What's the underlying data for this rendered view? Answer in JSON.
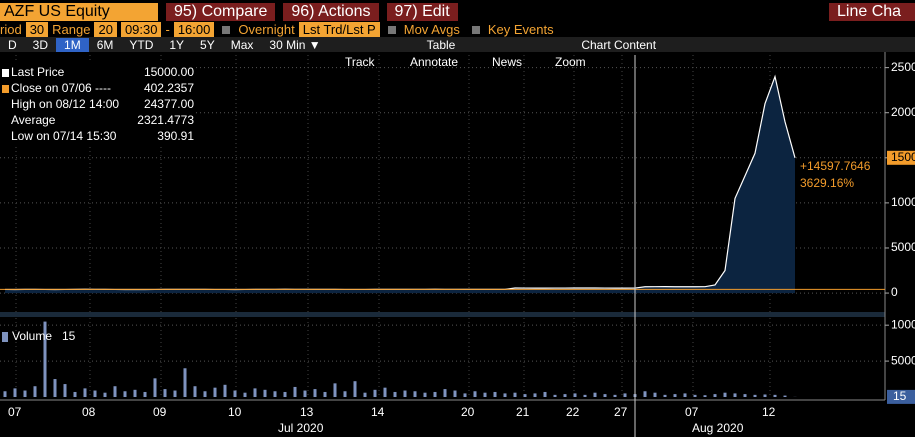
{
  "toolbar": {
    "security": "AZF US Equity",
    "menu": [
      "95) Compare",
      "96) Actions",
      "97) Edit"
    ],
    "chart_type": "Line Cha"
  },
  "settings": {
    "period_label": "riod",
    "period": "30",
    "range_label": "Range",
    "range": "20",
    "start": "09:30",
    "dash": "-",
    "end": "16:00",
    "overnight": "Overnight",
    "price_type": "Lst Trd/Lst P",
    "mov_avgs": "Mov Avgs",
    "key_events": "Key Events"
  },
  "periods": [
    "D",
    "3D",
    "1M",
    "6M",
    "YTD",
    "1Y",
    "5Y",
    "Max",
    "30 Min ▼"
  ],
  "selected_period": "1M",
  "table": "Table",
  "chart_content": "Chart Content",
  "tools": [
    "Track",
    "Annotate",
    "News",
    "Zoom"
  ],
  "legend": [
    {
      "label": "Last Price",
      "value": "15000.00",
      "color": "#ffffff"
    },
    {
      "label": "Close on 07/06 ----",
      "value": 402.2357,
      "color": "#f39c2b"
    },
    {
      "label": "High on 08/12 14:00",
      "value": "24377.00"
    },
    {
      "label": "Average",
      "value": "2321.4773"
    },
    {
      "label": "Low on 07/14 15:30",
      "value": "390.91"
    }
  ],
  "chart_data": [
    {
      "type": "area",
      "series": [
        {
          "name": "Last Price",
          "color": "#ffffff",
          "fill": "#0c2440",
          "values": [
            400,
            395,
            410,
            405,
            400,
            398,
            402,
            410,
            420,
            415,
            405,
            400,
            398,
            395,
            392,
            400,
            405,
            410,
            412,
            408,
            405,
            402,
            400,
            398,
            400,
            405,
            410,
            415,
            420,
            418,
            415,
            410,
            408,
            405,
            402,
            400,
            402,
            405,
            408,
            410,
            412,
            415,
            418,
            420,
            418,
            415,
            412,
            410,
            408,
            405,
            410,
            560,
            555,
            550,
            548,
            552,
            555,
            560,
            565,
            558,
            552,
            550,
            548,
            555,
            700,
            705,
            710,
            698,
            702,
            700,
            705,
            900,
            2500,
            10500,
            13000,
            15500,
            21000,
            24000,
            19000,
            15000
          ]
        }
      ],
      "ylim": [
        -2100,
        26400
      ],
      "yticks": [
        0,
        5000,
        10000,
        15000,
        20000,
        25000
      ],
      "grid": true,
      "change_label": "+14597.7646",
      "change_pct": "3629.16%"
    },
    {
      "type": "bar",
      "series": [
        {
          "name": "Volume",
          "color": "#7f93bf",
          "values": [
            800,
            1200,
            900,
            1500,
            10500,
            2500,
            1800,
            700,
            1200,
            900,
            600,
            1500,
            800,
            1000,
            700,
            2600,
            1100,
            900,
            4000,
            1500,
            800,
            1300,
            1700,
            900,
            600,
            1200,
            1000,
            800,
            700,
            1400,
            900,
            1100,
            700,
            1900,
            800,
            2200,
            600,
            1000,
            1300,
            700,
            900,
            800,
            600,
            700,
            1100,
            900,
            500,
            800,
            600,
            700,
            500,
            600,
            400,
            500,
            700,
            300,
            400,
            500,
            300,
            600,
            400,
            300,
            500,
            400,
            800,
            600,
            300,
            400,
            500,
            300,
            250,
            400,
            600,
            500,
            400,
            300,
            350,
            300,
            200,
            15
          ]
        }
      ],
      "ylim": [
        0,
        11000
      ],
      "yticks": [
        5000,
        10000
      ],
      "grid": true,
      "xlabels": [
        "07",
        "08",
        "09",
        "10",
        "13",
        "14",
        "20",
        "21",
        "22",
        "27",
        "07",
        "12"
      ],
      "months": [
        "Jul 2020",
        "Aug 2020"
      ]
    }
  ]
}
